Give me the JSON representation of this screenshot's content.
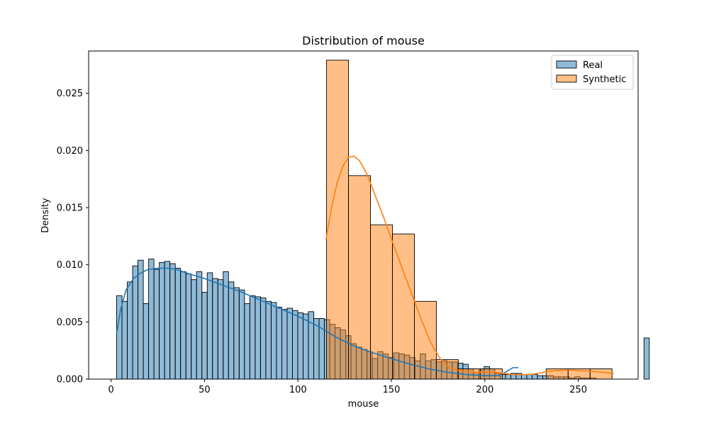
{
  "chart_data": {
    "type": "histogram",
    "title": "Distribution of mouse",
    "xlabel": "mouse",
    "ylabel": "Density",
    "xlim": [
      -12,
      282
    ],
    "ylim": [
      0,
      0.0287
    ],
    "xticks": [
      0,
      50,
      100,
      150,
      200,
      250
    ],
    "yticks": [
      0.0,
      0.005,
      0.01,
      0.015,
      0.02,
      0.025
    ],
    "ytick_labels": [
      "0.000",
      "0.005",
      "0.010",
      "0.015",
      "0.020",
      "0.025"
    ],
    "legend_position": "top-right",
    "series": [
      {
        "name": "Real",
        "color": "#1f77b4",
        "bar_alpha": 0.5,
        "bin_start": 3.0,
        "bin_width": 2.85,
        "density": [
          0.0073,
          0.0068,
          0.0085,
          0.0099,
          0.0104,
          0.0066,
          0.0105,
          0.0096,
          0.0102,
          0.0103,
          0.0101,
          0.0097,
          0.0094,
          0.0092,
          0.0087,
          0.0094,
          0.0076,
          0.0093,
          0.0088,
          0.0087,
          0.0094,
          0.0085,
          0.008,
          0.0078,
          0.0066,
          0.0073,
          0.0072,
          0.0071,
          0.0068,
          0.0067,
          0.0063,
          0.0061,
          0.0062,
          0.006,
          0.0058,
          0.0057,
          0.0059,
          0.0053,
          0.0053,
          0.0052,
          0.0048,
          0.0045,
          0.0043,
          0.0038,
          0.0031,
          0.0028,
          0.0026,
          0.0024,
          0.0018,
          0.0024,
          0.0022,
          0.0019,
          0.0023,
          0.0022,
          0.0021,
          0.0019,
          0.0016,
          0.0022,
          0.0016,
          0.0017,
          0.0015,
          0.0016,
          0.0015,
          0.0015,
          0.0014,
          0.0013,
          0.0009,
          0.0006,
          0.0008,
          0.0011,
          0.0009,
          0.0005,
          0.0004,
          0.0004,
          0.0005,
          0.0005,
          0.0004,
          0.0004,
          0.0004,
          0.0003,
          0.0003,
          0.0003,
          0.0002,
          0.0002,
          0.0002,
          0.0001,
          0.0002,
          0.0001,
          0.0001,
          0.0001,
          0.0,
          0.0,
          0.0,
          0.0,
          0.0,
          0.0,
          0.0,
          0.0,
          0.0,
          0.0036
        ],
        "kde": [
          [
            3,
            0.004
          ],
          [
            5,
            0.006
          ],
          [
            8,
            0.0078
          ],
          [
            12,
            0.0088
          ],
          [
            16,
            0.0093
          ],
          [
            20,
            0.0096
          ],
          [
            25,
            0.0097
          ],
          [
            30,
            0.0097
          ],
          [
            35,
            0.0096
          ],
          [
            40,
            0.0093
          ],
          [
            50,
            0.0088
          ],
          [
            60,
            0.0082
          ],
          [
            70,
            0.0076
          ],
          [
            80,
            0.0069
          ],
          [
            90,
            0.0062
          ],
          [
            100,
            0.0055
          ],
          [
            105,
            0.0051
          ],
          [
            110,
            0.0047
          ],
          [
            115,
            0.0042
          ],
          [
            120,
            0.0037
          ],
          [
            125,
            0.0033
          ],
          [
            130,
            0.0029
          ],
          [
            140,
            0.0023
          ],
          [
            150,
            0.0018
          ],
          [
            160,
            0.0013
          ],
          [
            170,
            0.0009
          ],
          [
            180,
            0.0006
          ],
          [
            190,
            0.0004
          ],
          [
            200,
            0.0003
          ],
          [
            207,
            0.0003
          ],
          [
            211,
            0.0006
          ],
          [
            215,
            0.001
          ],
          [
            218,
            0.001
          ]
        ]
      },
      {
        "name": "Synthetic",
        "color": "#ff7f0e",
        "bar_alpha": 0.5,
        "bin_start": 115.3,
        "bin_width": 11.75,
        "density": [
          0.0279,
          0.0178,
          0.0135,
          0.0127,
          0.0068,
          0.0017,
          0.0009,
          0.0009,
          0.0,
          0.0,
          0.0009,
          0.0009,
          0.0009
        ],
        "kde": [
          [
            115,
            0.0122
          ],
          [
            118,
            0.015
          ],
          [
            121,
            0.0172
          ],
          [
            124,
            0.0186
          ],
          [
            127,
            0.0194
          ],
          [
            130,
            0.0195
          ],
          [
            133,
            0.0191
          ],
          [
            137,
            0.0179
          ],
          [
            141,
            0.0162
          ],
          [
            146,
            0.0141
          ],
          [
            151,
            0.0118
          ],
          [
            156,
            0.0096
          ],
          [
            161,
            0.0074
          ],
          [
            166,
            0.0052
          ],
          [
            171,
            0.0032
          ],
          [
            176,
            0.0018
          ],
          [
            181,
            0.001
          ],
          [
            187,
            0.0007
          ],
          [
            195,
            0.0006
          ],
          [
            205,
            0.0006
          ],
          [
            215,
            0.0004
          ],
          [
            225,
            0.0004
          ],
          [
            235,
            0.0007
          ],
          [
            245,
            0.0008
          ],
          [
            255,
            0.0007
          ],
          [
            262,
            0.0006
          ],
          [
            269,
            0.0005
          ]
        ]
      }
    ]
  }
}
